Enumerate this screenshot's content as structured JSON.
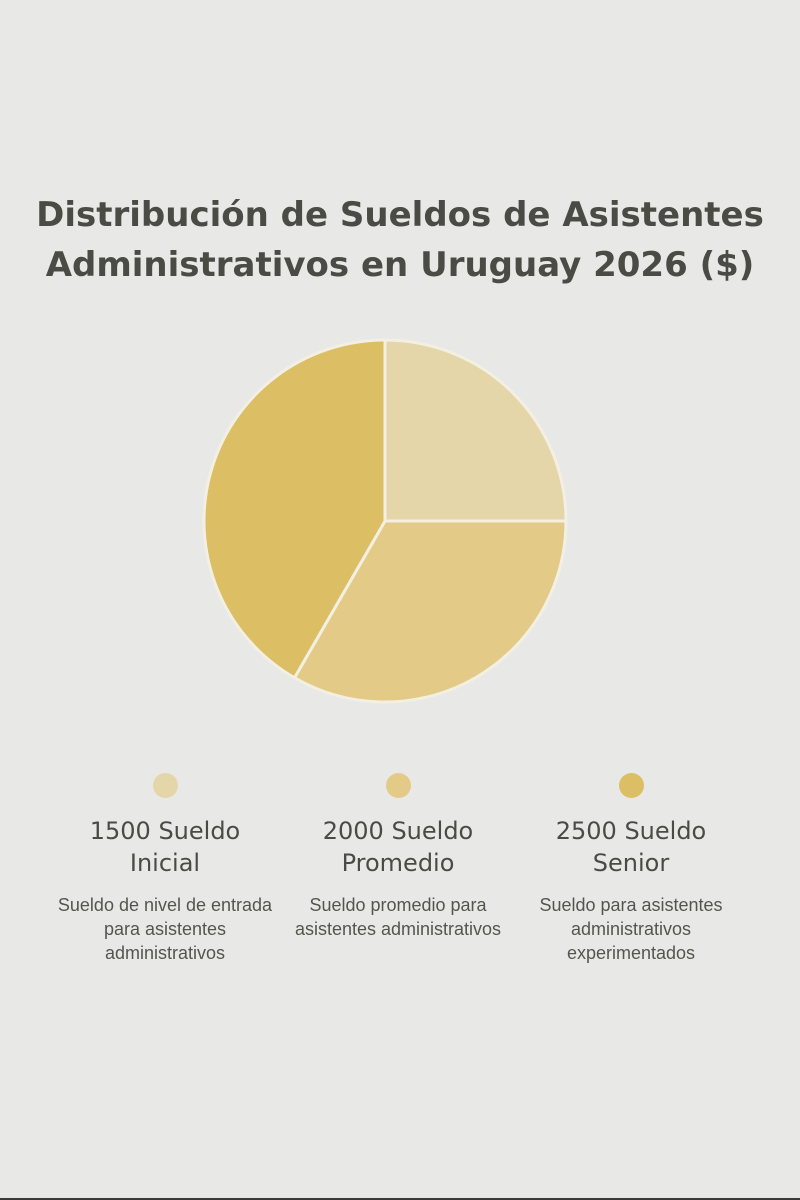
{
  "chart_data": {
    "type": "pie",
    "title_lines": [
      "Distribución de Sueldos de Asistentes",
      "Administrativos en Uruguay 2026 ($)"
    ],
    "slices": [
      {
        "value": 1500,
        "label_lines": [
          "1500 Sueldo",
          "Inicial"
        ],
        "description": "Sueldo de nivel de entrada para asistentes administrativos",
        "color": "#e4d6a9"
      },
      {
        "value": 2000,
        "label_lines": [
          "2000 Sueldo",
          "Promedio"
        ],
        "description": "Sueldo promedio para asistentes administrativos",
        "color": "#e3cb87"
      },
      {
        "value": 2500,
        "label_lines": [
          "2500 Sueldo",
          "Senior"
        ],
        "description": "Sueldo para asistentes administrativos experimentados",
        "color": "#dcbe64"
      }
    ],
    "start": "12 o'clock",
    "direction": "clockwise",
    "legend_position": "bottom",
    "slice_border_color": "#f3efe3"
  }
}
